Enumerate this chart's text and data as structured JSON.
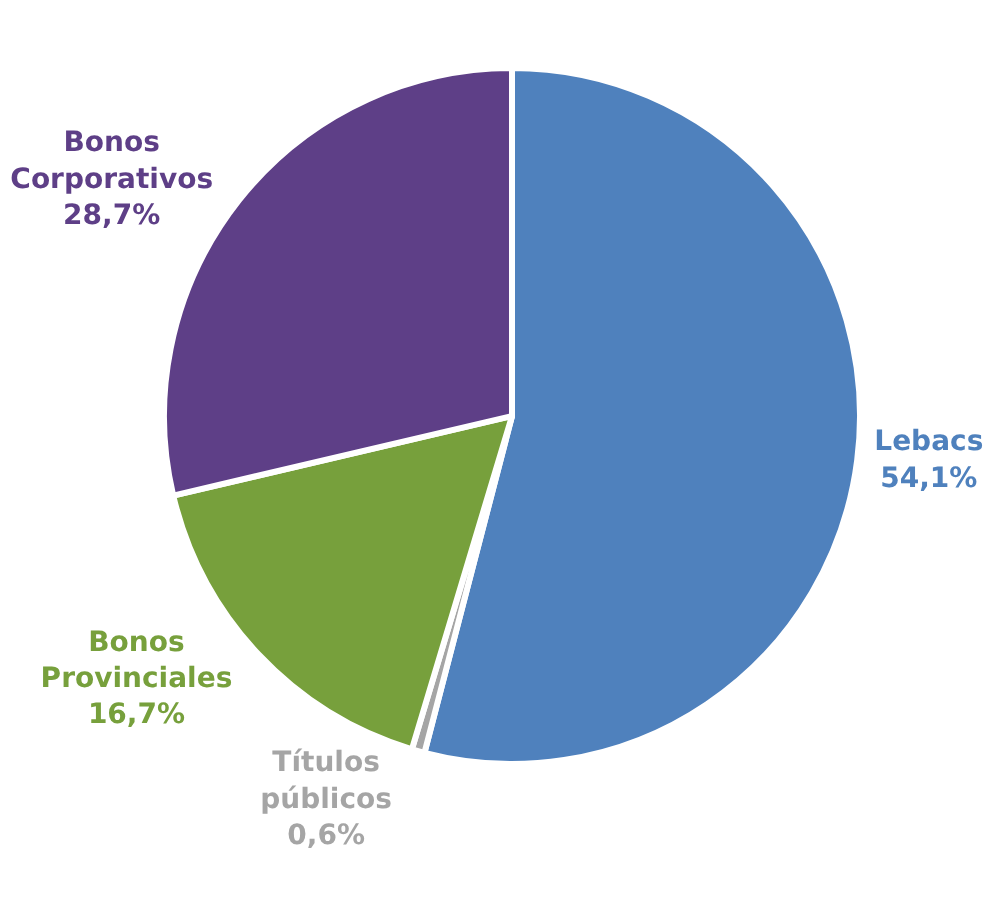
{
  "chart_data": {
    "type": "pie",
    "categories": [
      "Lebacs",
      "Títulos públicos",
      "Bonos Provinciales",
      "Bonos Corporativos"
    ],
    "values": [
      54.1,
      0.6,
      16.7,
      28.7
    ],
    "value_labels": [
      "54,1%",
      "0,6%",
      "16,7%",
      "28,7%"
    ],
    "colors": [
      "#4f81bd",
      "#a5a5a5",
      "#77a03c",
      "#5e3f87"
    ],
    "legend": false
  }
}
